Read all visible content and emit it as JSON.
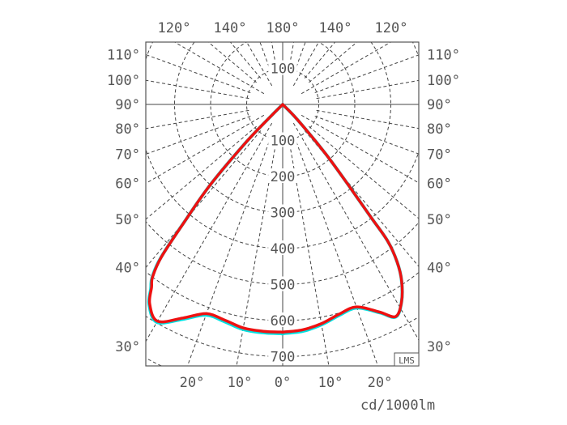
{
  "chart_data": {
    "type": "polar",
    "unit_label": "cd/1000lm",
    "badge": "LMS",
    "top_angle_labels": [
      "120°",
      "140°",
      "180°",
      "140°",
      "120°"
    ],
    "side_angle_labels": [
      "110°",
      "100°",
      "90°",
      "80°",
      "70°",
      "60°",
      "50°",
      "40°",
      "30°"
    ],
    "bottom_angle_labels": [
      "20°",
      "10°",
      "0°",
      "10°",
      "20°"
    ],
    "radial_labels_up": [
      "100"
    ],
    "radial_labels_down": [
      "100",
      "200",
      "300",
      "400",
      "500",
      "600",
      "700"
    ],
    "radial_range": [
      0,
      700
    ],
    "grid": true,
    "series": [
      {
        "color": "#00e0e0",
        "left": [
          [
            0,
            636
          ],
          [
            5,
            636
          ],
          [
            10,
            634
          ],
          [
            15,
            624
          ],
          [
            20,
            622
          ],
          [
            25,
            658
          ],
          [
            30,
            698
          ],
          [
            33.7,
            668
          ],
          [
            35.6,
            628
          ],
          [
            37,
            602
          ],
          [
            38.5,
            542
          ],
          [
            40,
            420
          ],
          [
            42,
            300
          ],
          [
            44,
            150
          ],
          [
            45,
            50
          ],
          [
            46,
            0
          ]
        ],
        "right": [
          [
            0,
            636
          ],
          [
            5,
            632
          ],
          [
            10,
            621
          ],
          [
            15,
            606
          ],
          [
            20,
            601
          ],
          [
            25,
            638
          ],
          [
            28,
            668
          ],
          [
            31,
            640
          ],
          [
            34,
            590
          ],
          [
            36,
            540
          ],
          [
            37.5,
            480
          ],
          [
            38,
            400
          ],
          [
            39,
            300
          ],
          [
            41,
            180
          ],
          [
            44,
            60
          ],
          [
            45,
            0
          ]
        ]
      },
      {
        "color": "#ee1111",
        "left": [
          [
            0,
            632
          ],
          [
            5,
            632
          ],
          [
            10,
            630
          ],
          [
            15,
            620
          ],
          [
            20,
            618
          ],
          [
            25,
            654
          ],
          [
            30,
            695
          ],
          [
            33.7,
            665
          ],
          [
            35.6,
            625
          ],
          [
            37,
            600
          ],
          [
            38.5,
            540
          ],
          [
            40,
            420
          ],
          [
            42,
            300
          ],
          [
            44,
            150
          ],
          [
            45,
            50
          ],
          [
            46,
            0
          ]
        ],
        "right": [
          [
            0,
            632
          ],
          [
            5,
            628
          ],
          [
            10,
            618
          ],
          [
            15,
            603
          ],
          [
            20,
            598
          ],
          [
            25,
            636
          ],
          [
            28,
            667
          ],
          [
            31,
            640
          ],
          [
            34,
            590
          ],
          [
            36,
            540
          ],
          [
            37.5,
            480
          ],
          [
            38,
            400
          ],
          [
            39,
            300
          ],
          [
            41,
            180
          ],
          [
            44,
            60
          ],
          [
            45,
            0
          ]
        ]
      }
    ]
  }
}
